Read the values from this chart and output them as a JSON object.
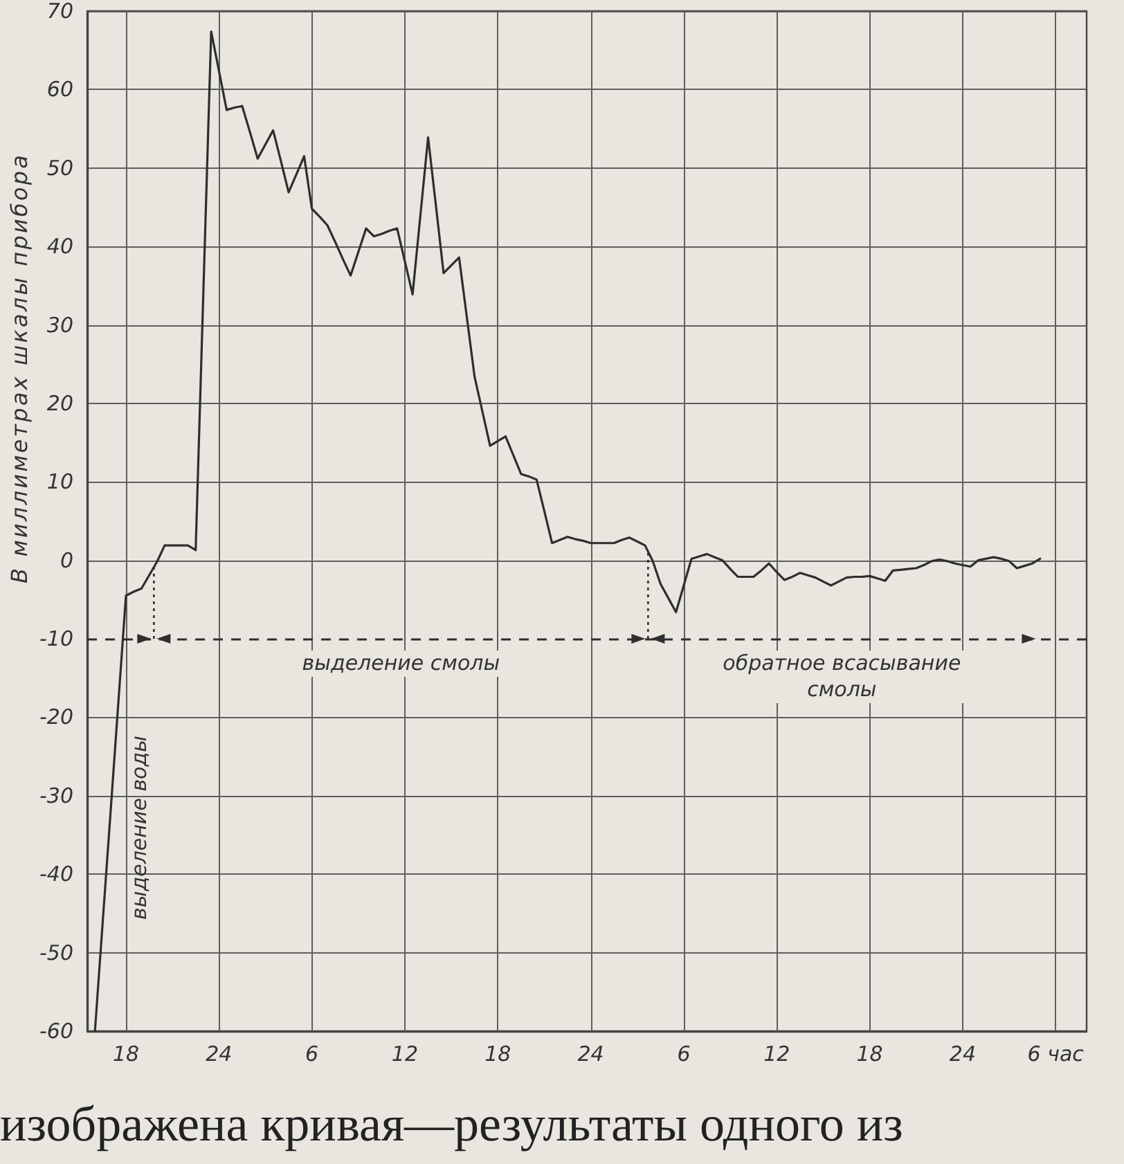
{
  "chart_data": {
    "type": "line",
    "ylabel": "В миллиметрах шкалы прибора",
    "categories": [
      null,
      null,
      null,
      null,
      null,
      "18",
      null,
      null,
      null,
      null,
      null,
      null,
      null,
      null,
      null,
      null,
      null,
      "24",
      null,
      null,
      null,
      null,
      null,
      null,
      null,
      null,
      null,
      null,
      null,
      "6",
      null,
      null,
      null,
      null,
      null,
      null,
      null,
      null,
      null,
      null,
      null,
      "12",
      null,
      null,
      null,
      null,
      null,
      null,
      null,
      null,
      null,
      null,
      null,
      "18",
      null,
      null,
      null,
      null,
      null,
      null,
      null,
      null,
      null,
      null,
      null,
      "24",
      null,
      null,
      null,
      null,
      null,
      null,
      null,
      null,
      null,
      null,
      null,
      "6",
      null,
      null,
      null,
      null,
      null,
      null,
      null,
      null,
      null,
      null,
      null,
      "12",
      null,
      null,
      null,
      null,
      null,
      null,
      null,
      null,
      null,
      null,
      null,
      "18",
      null,
      null,
      null,
      null,
      null,
      null,
      null,
      null,
      null,
      null,
      null,
      "24",
      null,
      null,
      null,
      null,
      null,
      null,
      null,
      null,
      null,
      null,
      null,
      "6 час",
      null,
      null,
      null,
      null
    ],
    "series": [
      {
        "color": "#2e2e2e",
        "values": [
          null,
          -60,
          -46.1,
          -32.3,
          -18.4,
          -4.5,
          -4.0,
          -3.6,
          -1.9,
          -0.2,
          1.9,
          1.9,
          1.9,
          1.9,
          1.3,
          34.4,
          67.4,
          62.4,
          57.4,
          57.7,
          57.9,
          54.6,
          51.2,
          53.0,
          54.8,
          50.9,
          46.9,
          49.2,
          51.5,
          44.8,
          43.8,
          42.7,
          40.6,
          38.4,
          36.3,
          39.3,
          42.3,
          41.3,
          41.6,
          42.0,
          42.3,
          38.1,
          33.9,
          43.9,
          53.9,
          45.3,
          36.6,
          37.6,
          38.6,
          31.0,
          23.4,
          19.0,
          14.6,
          15.2,
          15.8,
          13.4,
          11.0,
          10.7,
          10.3,
          6.3,
          2.2,
          2.6,
          3.0,
          2.7,
          2.5,
          2.2,
          2.2,
          2.2,
          2.2,
          2.6,
          2.9,
          2.4,
          1.9,
          -0.1,
          -3.0,
          -4.8,
          -6.6,
          -3.2,
          0.2,
          0.5,
          0.8,
          0.4,
          0,
          -1.1,
          -2.1,
          -2.1,
          -2.1,
          -1.3,
          -0.4,
          -1.5,
          -2.5,
          -2.1,
          -1.6,
          -1.9,
          -2.2,
          -2.7,
          -3.2,
          -2.7,
          -2.2,
          -2.1,
          -2.1,
          -2.0,
          -2.3,
          -2.6,
          -1.3,
          -1.2,
          -1.1,
          -1.0,
          -0.6,
          -0.1,
          0.1,
          -0.1,
          -0.4,
          -0.6,
          -0.8,
          0,
          0.2,
          0.4,
          0.2,
          -0.1,
          -1.0,
          -0.7,
          -0.4,
          0.2,
          null,
          null,
          null,
          null,
          null,
          null
        ]
      }
    ],
    "ylim": [
      -60,
      70
    ],
    "yticks": [
      -60,
      -50,
      -40,
      -30,
      -20,
      -10,
      0,
      10,
      20,
      30,
      40,
      50,
      60,
      70
    ],
    "grid": true,
    "marker": "none",
    "line_style": "solid",
    "ref_lines": [
      {
        "axis": "y",
        "value": -10,
        "line_style": "dashed",
        "color": "#2e2e2e"
      }
    ],
    "annotations": [
      "выделение воды",
      "выделение смолы",
      "обратное всасывание смолы",
      "изображена кривая—результаты одного из"
    ]
  }
}
